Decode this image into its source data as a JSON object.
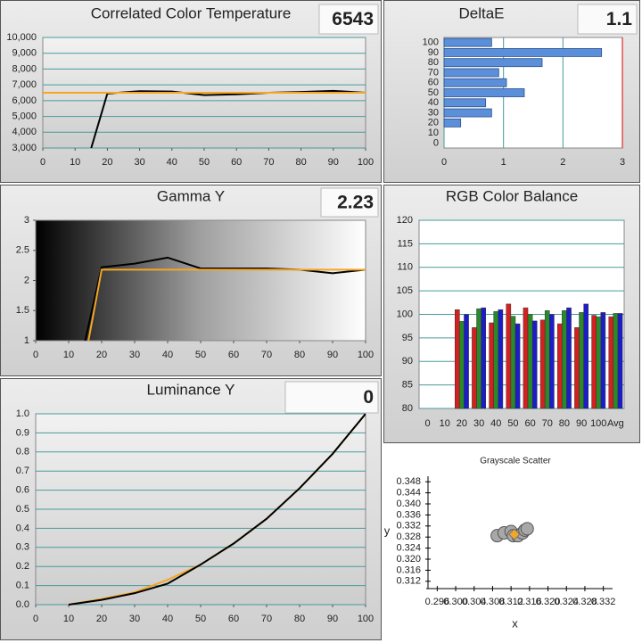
{
  "chart_data": [
    {
      "type": "line",
      "title": "Correlated Color Temperature",
      "readout": "6543",
      "series": [
        {
          "color": "#000000",
          "x": [
            15,
            20,
            30,
            40,
            50,
            60,
            70,
            80,
            90,
            100
          ],
          "values": [
            3000,
            6450,
            6600,
            6580,
            6350,
            6400,
            6500,
            6550,
            6620,
            6500
          ]
        },
        {
          "color": "#f5a623",
          "x": [
            0,
            100
          ],
          "values": [
            6500,
            6500
          ]
        }
      ],
      "xlim": [
        0,
        100
      ],
      "xticks": [
        0,
        10,
        20,
        30,
        40,
        50,
        60,
        70,
        80,
        90,
        100
      ],
      "ylim": [
        3000,
        10000
      ],
      "yticks": [
        {
          "value": 3000,
          "label": "3,000"
        },
        {
          "value": 4000,
          "label": "4,000"
        },
        {
          "value": 5000,
          "label": "5,000"
        },
        {
          "value": 6000,
          "label": "6,000"
        },
        {
          "value": 7000,
          "label": "7,000"
        },
        {
          "value": 8000,
          "label": "8,000"
        },
        {
          "value": 9000,
          "label": "9,000"
        },
        {
          "value": 10000,
          "label": "10,000"
        }
      ],
      "grid": true
    },
    {
      "type": "bar",
      "orientation": "horizontal",
      "title": "DeltaE",
      "readout": "1.1",
      "categories": [
        "0",
        "10",
        "20",
        "30",
        "40",
        "50",
        "60",
        "70",
        "80",
        "90",
        "100"
      ],
      "values": [
        0,
        0,
        0.28,
        0.8,
        0.7,
        1.35,
        1.05,
        0.92,
        1.65,
        2.65,
        0.8
      ],
      "color": "#5b8fd9",
      "xlim": [
        0,
        3
      ],
      "xticks": [
        0,
        1,
        2,
        3
      ],
      "grid": true
    },
    {
      "type": "line",
      "title": "Gamma Y",
      "readout": "2.23",
      "series": [
        {
          "color": "#000000",
          "x": [
            15,
            20,
            30,
            40,
            50,
            60,
            70,
            80,
            90,
            100
          ],
          "values": [
            1,
            2.22,
            2.28,
            2.38,
            2.2,
            2.2,
            2.2,
            2.18,
            2.12,
            2.18
          ]
        },
        {
          "color": "#f5a623",
          "x": [
            16,
            20,
            100
          ],
          "values": [
            1,
            2.18,
            2.18
          ]
        }
      ],
      "xlim": [
        0,
        100
      ],
      "xticks": [
        0,
        10,
        20,
        30,
        40,
        50,
        60,
        70,
        80,
        90,
        100
      ],
      "ylim": [
        1,
        3
      ],
      "yticks": [
        1,
        1.5,
        2,
        2.5,
        3
      ],
      "grid": false
    },
    {
      "type": "bar",
      "orientation": "vertical",
      "title": "RGB Color Balance",
      "categories": [
        "0",
        "10",
        "20",
        "30",
        "40",
        "50",
        "60",
        "70",
        "80",
        "90",
        "100",
        "Avg"
      ],
      "series": [
        {
          "color": "#d42020",
          "values": [
            null,
            null,
            101,
            97.2,
            98.2,
            102.2,
            101.4,
            98.8,
            98,
            97.2,
            99.8,
            99.5
          ]
        },
        {
          "color": "#2a8a2a",
          "values": [
            null,
            null,
            98.5,
            101.2,
            100.6,
            99.6,
            100,
            100.8,
            100.8,
            100.4,
            99.5,
            100.2
          ]
        },
        {
          "color": "#1c1cc8",
          "values": [
            null,
            null,
            100,
            101.4,
            101,
            98,
            98.6,
            100,
            101.4,
            102.2,
            100.4,
            100.2
          ]
        }
      ],
      "ylim": [
        80,
        120
      ],
      "yticks": [
        80,
        85,
        90,
        95,
        100,
        105,
        110,
        115,
        120
      ],
      "grid": true
    },
    {
      "type": "line",
      "title": "Luminance Y",
      "readout": "0",
      "series": [
        {
          "color": "#f5a623",
          "x": [
            10,
            20,
            30,
            40,
            50,
            60,
            70,
            80,
            90,
            100
          ],
          "values": [
            0,
            0.03,
            0.065,
            0.13,
            0.21,
            0.32,
            0.45,
            0.61,
            0.79,
            1
          ]
        },
        {
          "color": "#000000",
          "x": [
            10,
            20,
            30,
            40,
            50,
            60,
            70,
            80,
            90,
            100
          ],
          "values": [
            0,
            0.025,
            0.06,
            0.11,
            0.21,
            0.32,
            0.45,
            0.61,
            0.79,
            1
          ]
        }
      ],
      "xlim": [
        0,
        100
      ],
      "xticks": [
        0,
        10,
        20,
        30,
        40,
        50,
        60,
        70,
        80,
        90,
        100
      ],
      "ylim": [
        0,
        1
      ],
      "yticks": [
        {
          "value": 0,
          "label": "0.0"
        },
        {
          "value": 0.1,
          "label": "0.1"
        },
        {
          "value": 0.2,
          "label": "0.2"
        },
        {
          "value": 0.3,
          "label": "0.3"
        },
        {
          "value": 0.4,
          "label": "0.4"
        },
        {
          "value": 0.5,
          "label": "0.5"
        },
        {
          "value": 0.6,
          "label": "0.6"
        },
        {
          "value": 0.7,
          "label": "0.7"
        },
        {
          "value": 0.8,
          "label": "0.8"
        },
        {
          "value": 0.9,
          "label": "0.9"
        },
        {
          "value": 1,
          "label": "1.0"
        }
      ],
      "grid": true
    },
    {
      "type": "scatter",
      "title": "Grayscale Scatter",
      "x_label": "x",
      "y_label": "y",
      "series": [
        {
          "color": "#a8a8a8",
          "marker": "circle",
          "x": [
            0.309,
            0.3105,
            0.312,
            0.3125,
            0.3135,
            0.3145,
            0.315,
            0.3155
          ],
          "values": [
            0.3285,
            0.3295,
            0.33,
            0.3285,
            0.3285,
            0.3295,
            0.3305,
            0.331
          ]
        },
        {
          "color": "#f5a623",
          "marker": "diamond",
          "x": [
            0.3127
          ],
          "values": [
            0.329
          ]
        }
      ],
      "xlim": [
        0.294,
        0.334
      ],
      "xticks": [
        0.296,
        {
          "value": 0.3,
          "label": "0.300"
        },
        0.304,
        0.308,
        0.312,
        0.316,
        {
          "value": 0.32,
          "label": "0.320"
        },
        0.324,
        0.328,
        0.332
      ],
      "ylim": [
        0.31,
        0.35
      ],
      "yticks": [
        0.312,
        0.316,
        {
          "value": 0.32,
          "label": "0.320"
        },
        0.324,
        0.328,
        0.332,
        0.336,
        {
          "value": 0.34,
          "label": "0.340"
        },
        0.344,
        0.348
      ]
    }
  ]
}
